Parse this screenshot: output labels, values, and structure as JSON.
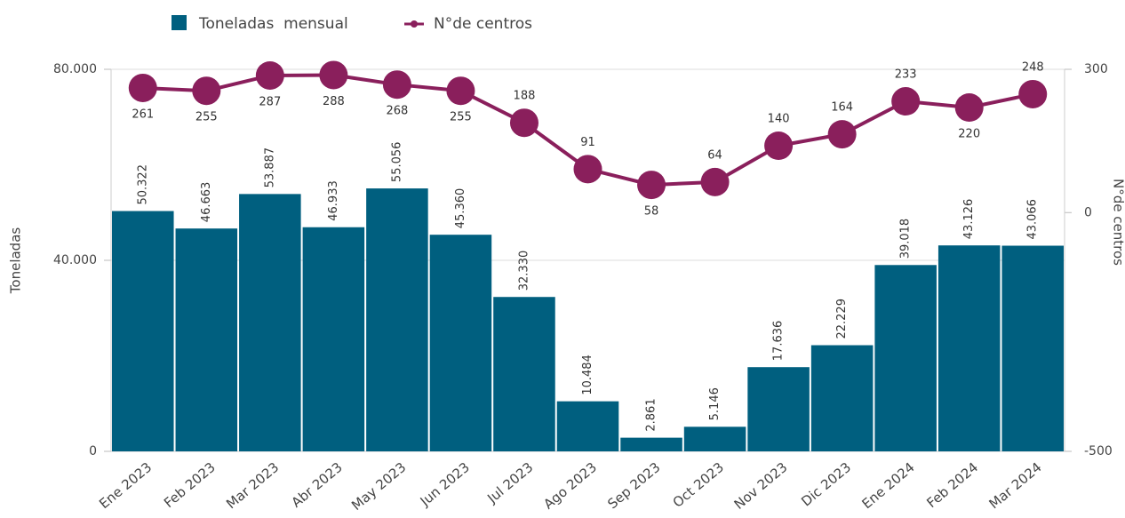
{
  "chart_data": {
    "type": "bar",
    "categories": [
      "Ene 2023",
      "Feb 2023",
      "Mar 2023",
      "Abr 2023",
      "May 2023",
      "Jun 2023",
      "Jul 2023",
      "Ago 2023",
      "Sep 2023",
      "Oct 2023",
      "Nov 2023",
      "Dic 2023",
      "Ene 2024",
      "Feb 2024",
      "Mar 2024"
    ],
    "series": [
      {
        "name": "Toneladas  mensual",
        "type": "bar",
        "color": "#005f7f",
        "values": [
          50322,
          46663,
          53887,
          46933,
          55056,
          45360,
          32330,
          10484,
          2861,
          5146,
          17636,
          22229,
          39018,
          43126,
          43066
        ],
        "value_labels": [
          "50.322",
          "46.663",
          "53.887",
          "46.933",
          "55.056",
          "45.360",
          "32.330",
          "10.484",
          "2.861",
          "5.146",
          "17.636",
          "22.229",
          "39.018",
          "43.126",
          "43.066"
        ]
      },
      {
        "name": "N°de centros",
        "type": "line",
        "axis": "y2",
        "color": "#8a1f5c",
        "values": [
          261,
          255,
          287,
          288,
          268,
          255,
          188,
          91,
          58,
          64,
          140,
          164,
          233,
          220,
          248
        ]
      }
    ],
    "ylabel": "Toneladas",
    "y2label": "N°de centros",
    "ylim": [
      0,
      80000
    ],
    "yticks": [
      0,
      {
        "value": 40000,
        "label": "40.000"
      },
      {
        "value": 80000,
        "label": "80.000"
      }
    ],
    "y2lim": [
      -500,
      300
    ],
    "y2ticks": [
      -500,
      0,
      300
    ],
    "grid": true,
    "legend": "top"
  }
}
